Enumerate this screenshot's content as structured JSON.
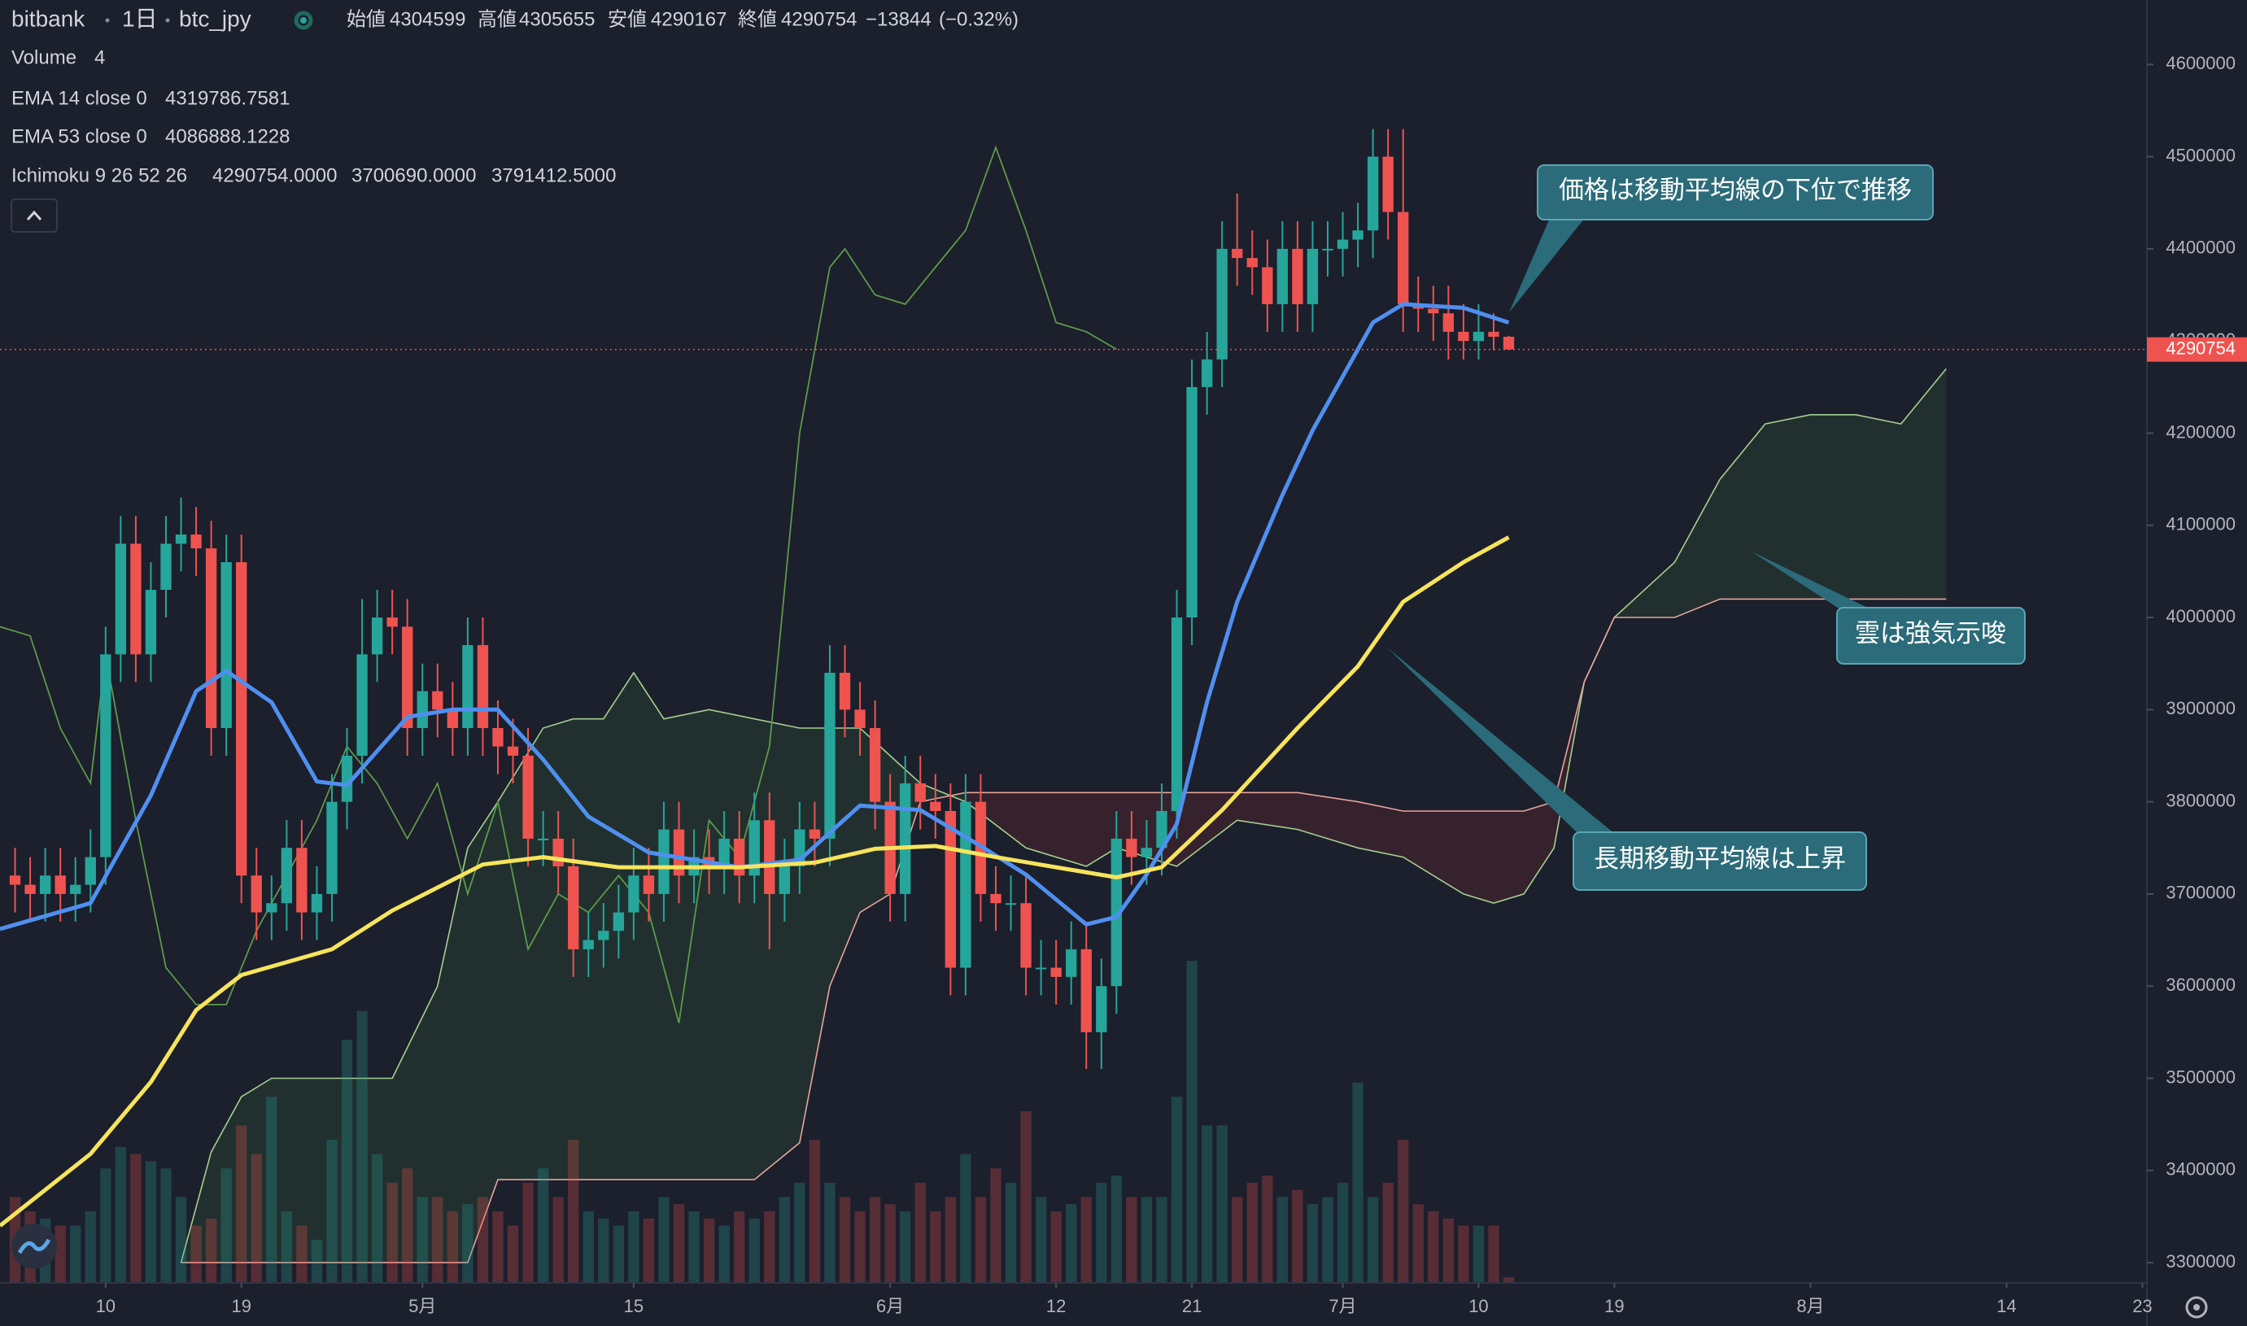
{
  "chart_data": {
    "type": "candlestick",
    "title": "bitbank",
    "interval": "1日",
    "symbol": "btc_jpy",
    "ohlc_labels": {
      "open": "始値",
      "high": "高値",
      "low": "安値",
      "close": "終値"
    },
    "change": {
      "value": -13844,
      "label": "−13844"
    },
    "change_pct": {
      "value": -0.32,
      "label": "(−0.32%)"
    },
    "up_color": "#26a69a",
    "down_color": "#ef5350",
    "x": [
      3,
      4,
      5,
      6,
      7,
      8,
      9,
      10,
      11,
      12,
      13,
      14,
      15,
      16,
      17,
      18,
      19,
      20,
      21,
      22,
      23,
      24,
      25,
      26,
      27,
      28,
      29,
      30,
      31,
      32,
      33,
      34,
      35,
      36,
      37,
      38,
      39,
      40,
      41,
      42,
      43,
      44,
      45,
      46,
      47,
      48,
      49,
      50,
      51,
      52,
      53,
      54,
      55,
      56,
      57,
      58,
      59,
      60,
      61,
      62,
      63,
      64,
      65,
      66,
      67,
      68,
      69,
      70,
      71,
      72,
      73,
      74,
      75,
      76,
      77,
      78,
      79,
      80,
      81,
      82,
      83,
      84,
      85,
      86,
      87,
      88,
      89,
      90,
      91,
      92,
      93,
      94,
      95,
      96,
      97,
      98,
      99,
      100,
      101,
      102
    ],
    "open": [
      3720000,
      3710000,
      3700000,
      3720000,
      3700000,
      3710000,
      3740000,
      3960000,
      4080000,
      3960000,
      4030000,
      4080000,
      4090000,
      4075000,
      3880000,
      4060000,
      3720000,
      3680000,
      3690000,
      3750000,
      3680000,
      3700000,
      3800000,
      3850000,
      3960000,
      4000000,
      3990000,
      3880000,
      3920000,
      3900000,
      3880000,
      3970000,
      3880000,
      3860000,
      3850000,
      3760000,
      3760000,
      3730000,
      3640000,
      3650000,
      3660000,
      3680000,
      3720000,
      3700000,
      3770000,
      3720000,
      3740000,
      3730000,
      3760000,
      3720000,
      3780000,
      3700000,
      3730000,
      3770000,
      3760000,
      3940000,
      3900000,
      3880000,
      3800000,
      3700000,
      3820000,
      3800000,
      3790000,
      3620000,
      3800000,
      3700000,
      3690000,
      3690000,
      3620000,
      3620000,
      3610000,
      3640000,
      3550000,
      3600000,
      3760000,
      3740000,
      3750000,
      3790000,
      4000000,
      4250000,
      4280000,
      4400000,
      4390000,
      4380000,
      4340000,
      4400000,
      4340000,
      4400000,
      4400000,
      4410000,
      4420000,
      4500000,
      4440000,
      4340000,
      4335000,
      4330000,
      4310000,
      4300000,
      4310000,
      4304599
    ],
    "high": [
      3750000,
      3740000,
      3750000,
      3750000,
      3740000,
      3770000,
      3990000,
      4110000,
      4110000,
      4060000,
      4110000,
      4130000,
      4120000,
      4105000,
      4090000,
      4090000,
      3750000,
      3720000,
      3780000,
      3780000,
      3730000,
      3830000,
      3880000,
      4020000,
      4030000,
      4030000,
      4020000,
      3950000,
      3950000,
      3930000,
      4000000,
      4000000,
      3910000,
      3890000,
      3880000,
      3790000,
      3790000,
      3760000,
      3680000,
      3690000,
      3710000,
      3750000,
      3750000,
      3800000,
      3800000,
      3770000,
      3770000,
      3790000,
      3790000,
      3810000,
      3810000,
      3760000,
      3800000,
      3800000,
      3970000,
      3970000,
      3930000,
      3910000,
      3830000,
      3850000,
      3850000,
      3830000,
      3820000,
      3830000,
      3830000,
      3730000,
      3720000,
      3720000,
      3650000,
      3650000,
      3670000,
      3670000,
      3630000,
      3790000,
      3790000,
      3780000,
      3820000,
      4030000,
      4280000,
      4310000,
      4430000,
      4460000,
      4420000,
      4410000,
      4430000,
      4430000,
      4430000,
      4430000,
      4440000,
      4450000,
      4530000,
      4530000,
      4530000,
      4370000,
      4360000,
      4360000,
      4340000,
      4340000,
      4330000,
      4305655
    ],
    "low": [
      3680000,
      3670000,
      3670000,
      3670000,
      3670000,
      3680000,
      3710000,
      3930000,
      3930000,
      3930000,
      4000000,
      4050000,
      4045000,
      3850000,
      3850000,
      3690000,
      3650000,
      3650000,
      3660000,
      3650000,
      3650000,
      3670000,
      3770000,
      3820000,
      3930000,
      3960000,
      3850000,
      3850000,
      3870000,
      3850000,
      3850000,
      3850000,
      3830000,
      3820000,
      3730000,
      3730000,
      3700000,
      3610000,
      3610000,
      3620000,
      3630000,
      3650000,
      3670000,
      3670000,
      3690000,
      3690000,
      3700000,
      3700000,
      3690000,
      3690000,
      3640000,
      3670000,
      3700000,
      3730000,
      3730000,
      3870000,
      3850000,
      3770000,
      3670000,
      3670000,
      3770000,
      3760000,
      3590000,
      3590000,
      3670000,
      3660000,
      3660000,
      3590000,
      3590000,
      3580000,
      3580000,
      3510000,
      3510000,
      3570000,
      3710000,
      3710000,
      3720000,
      3760000,
      3970000,
      4220000,
      4250000,
      4360000,
      4350000,
      4310000,
      4310000,
      4310000,
      4310000,
      4370000,
      4370000,
      4380000,
      4390000,
      4410000,
      4310000,
      4310000,
      4300000,
      4280000,
      4280000,
      4280000,
      4290000,
      4290167
    ],
    "close": [
      3710000,
      3700000,
      3720000,
      3700000,
      3710000,
      3740000,
      3960000,
      4080000,
      3960000,
      4030000,
      4080000,
      4090000,
      4075000,
      3880000,
      4060000,
      3720000,
      3680000,
      3690000,
      3750000,
      3680000,
      3700000,
      3800000,
      3850000,
      3960000,
      4000000,
      3990000,
      3880000,
      3920000,
      3900000,
      3880000,
      3970000,
      3880000,
      3860000,
      3850000,
      3760000,
      3760000,
      3730000,
      3640000,
      3650000,
      3660000,
      3680000,
      3720000,
      3700000,
      3770000,
      3720000,
      3740000,
      3730000,
      3760000,
      3720000,
      3780000,
      3700000,
      3730000,
      3770000,
      3760000,
      3940000,
      3900000,
      3880000,
      3800000,
      3700000,
      3820000,
      3800000,
      3790000,
      3620000,
      3800000,
      3700000,
      3690000,
      3690000,
      3620000,
      3620000,
      3610000,
      3640000,
      3550000,
      3600000,
      3760000,
      3740000,
      3750000,
      3790000,
      4000000,
      4250000,
      4280000,
      4400000,
      4390000,
      4380000,
      4340000,
      4400000,
      4340000,
      4400000,
      4400000,
      4410000,
      4420000,
      4500000,
      4440000,
      4340000,
      4335000,
      4330000,
      4310000,
      4300000,
      4310000,
      4304599,
      4290754
    ],
    "volume_name": "Volume",
    "volume": [
      60,
      50,
      45,
      40,
      40,
      50,
      80,
      95,
      90,
      85,
      80,
      60,
      40,
      45,
      80,
      110,
      90,
      130,
      50,
      40,
      30,
      100,
      170,
      190,
      90,
      70,
      80,
      60,
      60,
      50,
      55,
      60,
      50,
      40,
      70,
      80,
      60,
      100,
      50,
      45,
      40,
      50,
      45,
      60,
      55,
      50,
      45,
      40,
      50,
      45,
      50,
      60,
      70,
      100,
      70,
      60,
      50,
      60,
      55,
      50,
      70,
      50,
      60,
      90,
      60,
      80,
      70,
      120,
      60,
      50,
      55,
      60,
      70,
      75,
      60,
      60,
      60,
      130,
      225,
      110,
      110,
      60,
      70,
      75,
      60,
      65,
      55,
      60,
      70,
      140,
      60,
      70,
      100,
      55,
      50,
      45,
      40,
      40,
      40,
      4
    ],
    "series": [
      {
        "name": "EMA 14 close 0",
        "legend_value": 4319786.7581,
        "color": "#4f8ff0",
        "x": [
          2,
          8,
          12,
          15,
          17,
          20,
          23,
          25,
          29,
          32,
          35,
          38,
          41,
          45,
          48,
          51,
          55,
          59,
          63,
          67,
          70,
          74,
          76,
          78,
          80,
          82,
          84,
          87,
          89,
          93,
          95,
          99,
          102
        ],
        "values": [
          3662000,
          3690000,
          3807000,
          3920000,
          3942000,
          3908000,
          3822000,
          3818000,
          3892000,
          3900000,
          3900000,
          3846000,
          3784000,
          3745000,
          3737000,
          3729000,
          3737000,
          3796000,
          3791000,
          3752000,
          3721000,
          3667000,
          3675000,
          3721000,
          3776000,
          3908000,
          4017000,
          4133000,
          4203000,
          4320000,
          4340000,
          4336000,
          4320000
        ]
      },
      {
        "name": "EMA 53 close 0",
        "legend_value": 4086888.1228,
        "color": "#f7e45c",
        "x": [
          2,
          8,
          12,
          15,
          18,
          24,
          28,
          34,
          38,
          43,
          51,
          56,
          60,
          64,
          68,
          72,
          76,
          79,
          83,
          88,
          92,
          95,
          99,
          102
        ],
        "values": [
          3340000,
          3418000,
          3496000,
          3574000,
          3612000,
          3640000,
          3682000,
          3732000,
          3740000,
          3729000,
          3729000,
          3734000,
          3749000,
          3752000,
          3740000,
          3729000,
          3718000,
          3729000,
          3791000,
          3880000,
          3947000,
          4017000,
          4060000,
          4087000
        ]
      }
    ],
    "ichimoku": {
      "name": "Ichimoku 9 26 52 26",
      "legend_values": [
        {
          "value": 4290754,
          "label": "4290754.0000"
        },
        {
          "value": 3700690,
          "label": "3700690.0000"
        },
        {
          "value": 3791412.5,
          "label": "3791412.5000"
        }
      ],
      "lagging": {
        "color": "#5c9a4a",
        "x": [
          2,
          4,
          6,
          8,
          9,
          11,
          13,
          15,
          17,
          19,
          21,
          23,
          25,
          27,
          29,
          31,
          33,
          35,
          37,
          39,
          41,
          43,
          45,
          47,
          49,
          51,
          53,
          55,
          57,
          58,
          60,
          62,
          64,
          66,
          68,
          70,
          72,
          74,
          76
        ],
        "values": [
          3990000,
          3980000,
          3880000,
          3820000,
          3960000,
          3780000,
          3620000,
          3580000,
          3580000,
          3660000,
          3720000,
          3780000,
          3860000,
          3820000,
          3760000,
          3820000,
          3700000,
          3800000,
          3640000,
          3700000,
          3680000,
          3720000,
          3680000,
          3560000,
          3780000,
          3740000,
          3860000,
          4200000,
          4380000,
          4400000,
          4350000,
          4340000,
          4380000,
          4420000,
          4510000,
          4420000,
          4320000,
          4310000,
          4291000
        ]
      },
      "cloud": {
        "span_a_color": "#a5cf8f",
        "span_b_color": "#e8a49c",
        "up_fill": "#43a047",
        "down_fill": "#e53935",
        "x": [
          14,
          16,
          18,
          20,
          25,
          28,
          31,
          33,
          35,
          38,
          40,
          42,
          44,
          46,
          49,
          52,
          55,
          57,
          59,
          61,
          63,
          66,
          70,
          74,
          76,
          78,
          80,
          84,
          88,
          92,
          95,
          99,
          101,
          103,
          105,
          107,
          109,
          113,
          116,
          119,
          122,
          125,
          128,
          131
        ],
        "span_a": [
          3300000,
          3420000,
          3480000,
          3500000,
          3500000,
          3500000,
          3600000,
          3750000,
          3800000,
          3880000,
          3890000,
          3890000,
          3940000,
          3890000,
          3900000,
          3890000,
          3880000,
          3880000,
          3880000,
          3850000,
          3820000,
          3800000,
          3750000,
          3730000,
          3750000,
          3740000,
          3730000,
          3780000,
          3770000,
          3750000,
          3740000,
          3700000,
          3690000,
          3700000,
          3750000,
          3930000,
          4000000,
          4060000,
          4150000,
          4210000,
          4220000,
          4220000,
          4210000,
          4270000
        ],
        "span_b": [
          3300000,
          3300000,
          3300000,
          3300000,
          3300000,
          3300000,
          3300000,
          3300000,
          3390000,
          3390000,
          3390000,
          3390000,
          3390000,
          3390000,
          3390000,
          3390000,
          3430000,
          3600000,
          3680000,
          3700000,
          3800000,
          3810000,
          3810000,
          3810000,
          3810000,
          3810000,
          3810000,
          3810000,
          3810000,
          3800000,
          3790000,
          3790000,
          3790000,
          3790000,
          3800000,
          3930000,
          4000000,
          4000000,
          4020000,
          4020000,
          4020000,
          4020000,
          4020000,
          4020000
        ]
      }
    },
    "xlim": [
      2,
      144.3
    ],
    "xticks": [
      {
        "value": 9,
        "label": "10"
      },
      {
        "value": 18,
        "label": "19"
      },
      {
        "value": 30,
        "label": "5月"
      },
      {
        "value": 44,
        "label": "15"
      },
      {
        "value": 61,
        "label": "6月"
      },
      {
        "value": 72,
        "label": "12"
      },
      {
        "value": 81,
        "label": "21"
      },
      {
        "value": 91,
        "label": "7月"
      },
      {
        "value": 100,
        "label": "10"
      },
      {
        "value": 109,
        "label": "19"
      },
      {
        "value": 122,
        "label": "8月"
      },
      {
        "value": 135,
        "label": "14"
      },
      {
        "value": 144,
        "label": "23"
      }
    ],
    "ylim": [
      3278000,
      4670000
    ],
    "yticks": [
      3300000,
      3400000,
      3500000,
      3600000,
      3700000,
      3800000,
      3900000,
      4000000,
      4100000,
      4200000,
      4300000,
      4400000,
      4500000,
      4600000
    ],
    "grid": false,
    "annotations": [
      {
        "text": "価格は移動平均線の下位で推移"
      },
      {
        "text": "雲は強気示唆"
      },
      {
        "text": "長期移動平均線は上昇"
      }
    ]
  }
}
